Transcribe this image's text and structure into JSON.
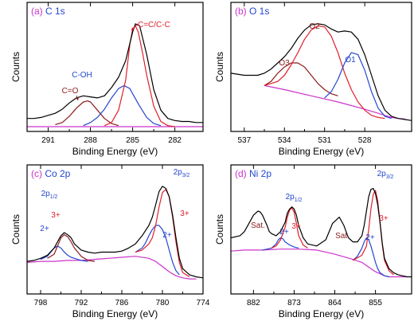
{
  "chart_data": [
    {
      "type": "line",
      "panel_letter": "(a)",
      "panel_title": "C 1s",
      "xlabel": "Binding Energy (eV)",
      "ylabel": "Counts",
      "xlim": [
        292.5,
        280.0
      ],
      "x_ticks": [
        291,
        288,
        285,
        282
      ],
      "x_tick_labels": [
        "291",
        "288",
        "285",
        "282"
      ],
      "ylim": [
        0,
        1.1
      ],
      "series": [
        {
          "role": "raw",
          "color": "#000000",
          "x": [
            292.5,
            292,
            291.5,
            291,
            290.5,
            290,
            289.5,
            289,
            288.5,
            288,
            287.5,
            287,
            286.5,
            286,
            285.5,
            285,
            284.8,
            284.5,
            284,
            283.5,
            283,
            282.5,
            282,
            281.5,
            281,
            280.5,
            280
          ],
          "y": [
            0.08,
            0.08,
            0.09,
            0.11,
            0.13,
            0.17,
            0.23,
            0.28,
            0.3,
            0.29,
            0.28,
            0.3,
            0.38,
            0.48,
            0.64,
            0.92,
            1.0,
            0.98,
            0.7,
            0.36,
            0.16,
            0.08,
            0.06,
            0.05,
            0.05,
            0.04,
            0.04
          ]
        },
        {
          "role": "component",
          "color": "#8b1a1a",
          "x": [
            290.5,
            290,
            289.5,
            289,
            288.5,
            288.2,
            288,
            287.5,
            287,
            286.5,
            286
          ],
          "y": [
            0.02,
            0.04,
            0.1,
            0.18,
            0.24,
            0.25,
            0.24,
            0.16,
            0.08,
            0.03,
            0.01
          ]
        },
        {
          "role": "component",
          "color": "#2346d1",
          "x": [
            288.5,
            288,
            287.5,
            287,
            286.5,
            286,
            285.6,
            285.2,
            285,
            284.5,
            284,
            283.5,
            283
          ],
          "y": [
            0.01,
            0.04,
            0.09,
            0.17,
            0.28,
            0.37,
            0.4,
            0.37,
            0.32,
            0.2,
            0.09,
            0.03,
            0.01
          ]
        },
        {
          "role": "component",
          "color": "#e0202a",
          "x": [
            287,
            286.5,
            286,
            285.5,
            285.2,
            285,
            284.8,
            284.6,
            284.3,
            284,
            283.5,
            283,
            282.5,
            282
          ],
          "y": [
            0.01,
            0.04,
            0.16,
            0.45,
            0.8,
            0.95,
            0.98,
            0.92,
            0.72,
            0.5,
            0.2,
            0.05,
            0.01,
            0.0
          ]
        },
        {
          "role": "background",
          "color": "#cc33cc",
          "x": [
            292.5,
            280
          ],
          "y": [
            0.0,
            0.0
          ]
        }
      ],
      "annotations": [
        {
          "text": "C=O",
          "color": "#8b1a1a"
        },
        {
          "text": "C-OH",
          "color": "#2346d1"
        },
        {
          "text": "C=C/C-C",
          "color": "#e0202a"
        }
      ]
    },
    {
      "type": "line",
      "panel_letter": "(b)",
      "panel_title": "O 1s",
      "xlabel": "Binding Energy (eV)",
      "ylabel": "Counts",
      "xlim": [
        538.0,
        524.5
      ],
      "x_ticks": [
        537,
        534,
        531,
        528
      ],
      "x_tick_labels": [
        "537",
        "534",
        "531",
        "528"
      ],
      "ylim": [
        0,
        1.1
      ],
      "series": [
        {
          "role": "raw",
          "color": "#000000",
          "x": [
            538,
            537,
            536,
            535.5,
            535,
            534.5,
            534,
            533.5,
            533,
            532.5,
            532,
            531.5,
            531,
            530.5,
            530,
            529.5,
            529,
            528.5,
            528,
            527.5,
            527,
            526.5,
            526,
            525.5,
            525,
            524.5
          ],
          "y": [
            0.52,
            0.5,
            0.5,
            0.52,
            0.56,
            0.62,
            0.68,
            0.76,
            0.86,
            0.94,
            0.99,
            1.0,
            0.99,
            0.95,
            0.92,
            0.93,
            0.92,
            0.85,
            0.7,
            0.5,
            0.3,
            0.16,
            0.1,
            0.08,
            0.07,
            0.06
          ]
        },
        {
          "role": "component",
          "color": "#8b1a1a",
          "x": [
            535.5,
            535,
            534.5,
            534,
            533.5,
            533,
            532.5,
            532,
            531.5,
            531,
            530.5,
            530
          ],
          "y": [
            0.4,
            0.44,
            0.52,
            0.58,
            0.62,
            0.62,
            0.58,
            0.5,
            0.42,
            0.36,
            0.32,
            0.3
          ]
        },
        {
          "role": "component",
          "color": "#e0202a",
          "x": [
            535.5,
            534.5,
            534,
            533.5,
            533,
            532.5,
            532,
            531.5,
            531,
            530.5,
            530,
            529.5,
            529,
            528.5,
            528,
            527.5,
            527,
            526.5
          ],
          "y": [
            0.4,
            0.44,
            0.5,
            0.6,
            0.72,
            0.85,
            0.94,
            0.98,
            0.97,
            0.88,
            0.72,
            0.52,
            0.36,
            0.24,
            0.16,
            0.11,
            0.09,
            0.08
          ]
        },
        {
          "role": "component",
          "color": "#2346d1",
          "x": [
            531,
            530.5,
            530,
            529.5,
            529,
            528.5,
            528,
            527.5,
            527,
            526.5,
            526
          ],
          "y": [
            0.28,
            0.34,
            0.46,
            0.62,
            0.72,
            0.7,
            0.55,
            0.34,
            0.18,
            0.1,
            0.08
          ]
        },
        {
          "role": "background",
          "color": "#cc33cc",
          "x": [
            535.5,
            534,
            532,
            530,
            528,
            527,
            526,
            525.5,
            525
          ],
          "y": [
            0.4,
            0.36,
            0.3,
            0.24,
            0.17,
            0.13,
            0.09,
            0.08,
            0.075
          ]
        }
      ],
      "annotations": [
        {
          "text": "O3",
          "color": "#8b1a1a"
        },
        {
          "text": "O2",
          "color": "#8b1a1a"
        },
        {
          "text": "O1",
          "color": "#2346d1"
        }
      ]
    },
    {
      "type": "line",
      "panel_letter": "(c)",
      "panel_title": "Co 2p",
      "xlabel": "Binding Energy (eV)",
      "ylabel": "Counts",
      "xlim": [
        800.0,
        774.0
      ],
      "x_ticks": [
        798,
        792,
        786,
        780,
        774
      ],
      "x_tick_labels": [
        "798",
        "792",
        "786",
        "780",
        "774"
      ],
      "ylim": [
        0,
        1.1
      ],
      "series": [
        {
          "role": "raw",
          "color": "#000000",
          "x": [
            800,
            799,
            798,
            797,
            796,
            795.5,
            795,
            794.5,
            794,
            793.5,
            793,
            792,
            791,
            790,
            789,
            788,
            787,
            786,
            785,
            784,
            783,
            782,
            781.5,
            781,
            780.5,
            780,
            779.5,
            779,
            778.5,
            778,
            777.5,
            777,
            776,
            775,
            774
          ],
          "y": [
            0.27,
            0.28,
            0.3,
            0.33,
            0.4,
            0.46,
            0.52,
            0.55,
            0.53,
            0.5,
            0.44,
            0.38,
            0.36,
            0.35,
            0.36,
            0.36,
            0.36,
            0.37,
            0.4,
            0.44,
            0.52,
            0.62,
            0.7,
            0.82,
            0.95,
            1.0,
            0.98,
            0.9,
            0.72,
            0.5,
            0.3,
            0.2,
            0.14,
            0.12,
            0.11
          ]
        },
        {
          "role": "component",
          "color": "#2346d1",
          "x": [
            798,
            797,
            796.5,
            796,
            795.5,
            795,
            794.5,
            794,
            793.5,
            793,
            792,
            791
          ],
          "y": [
            0.29,
            0.32,
            0.36,
            0.4,
            0.42,
            0.4,
            0.36,
            0.33,
            0.31,
            0.3,
            0.28,
            0.27
          ]
        },
        {
          "role": "component",
          "color": "#8b1a1a",
          "x": [
            797,
            796,
            795.5,
            795,
            794.5,
            794,
            793.5,
            793,
            792,
            791,
            790
          ],
          "y": [
            0.3,
            0.34,
            0.42,
            0.5,
            0.53,
            0.51,
            0.46,
            0.4,
            0.32,
            0.28,
            0.27
          ]
        },
        {
          "role": "component",
          "color": "#2346d1",
          "x": [
            784,
            783,
            782.5,
            782,
            781.5,
            781,
            780.5,
            780,
            779.5,
            779,
            778.5,
            778,
            777.5
          ],
          "y": [
            0.36,
            0.4,
            0.45,
            0.52,
            0.58,
            0.62,
            0.62,
            0.58,
            0.5,
            0.38,
            0.26,
            0.18,
            0.14
          ]
        },
        {
          "role": "component",
          "color": "#e0202a",
          "x": [
            784,
            783,
            782,
            781.5,
            781,
            780.5,
            780,
            779.5,
            779,
            778.5,
            778,
            777.5,
            777,
            776
          ],
          "y": [
            0.36,
            0.38,
            0.44,
            0.5,
            0.62,
            0.8,
            0.94,
            0.97,
            0.9,
            0.7,
            0.46,
            0.26,
            0.16,
            0.12
          ]
        },
        {
          "role": "background",
          "color": "#cc33cc",
          "x": [
            800,
            798,
            796,
            794,
            792,
            790,
            788,
            786,
            784,
            782,
            781,
            780,
            779,
            778,
            777,
            776,
            775
          ],
          "y": [
            0.26,
            0.27,
            0.27,
            0.28,
            0.28,
            0.29,
            0.3,
            0.31,
            0.32,
            0.3,
            0.27,
            0.22,
            0.17,
            0.13,
            0.11,
            0.1,
            0.1
          ]
        }
      ],
      "annotations": [
        {
          "text": "2p",
          "sub": "1/2",
          "color": "#2346d1"
        },
        {
          "text": "3+",
          "color": "#e0202a"
        },
        {
          "text": "2+",
          "color": "#2346d1"
        },
        {
          "text": "2p",
          "sub": "3/2",
          "color": "#2346d1"
        },
        {
          "text": "3+",
          "color": "#e0202a"
        },
        {
          "text": "2+",
          "color": "#2346d1"
        }
      ]
    },
    {
      "type": "line",
      "panel_letter": "(d)",
      "panel_title": "Ni 2p",
      "xlabel": "Binding Energy (eV)",
      "ylabel": "Counts",
      "xlim": [
        887.0,
        847.0
      ],
      "x_ticks": [
        882,
        873,
        864,
        855
      ],
      "x_tick_labels": [
        "882",
        "873",
        "864",
        "855"
      ],
      "ylim": [
        0,
        1.1
      ],
      "series": [
        {
          "role": "raw",
          "color": "#000000",
          "x": [
            887,
            885,
            884,
            883,
            882,
            881,
            880.5,
            880,
            879,
            878.5,
            878,
            877,
            876,
            875,
            874.5,
            874,
            873.5,
            873,
            872.5,
            872,
            871,
            870,
            868,
            866,
            864.5,
            863,
            862,
            861.5,
            861,
            860,
            859,
            858,
            857.5,
            857,
            856.5,
            856,
            855.5,
            855,
            854.5,
            854,
            853.5,
            853,
            852,
            851,
            850,
            849,
            848,
            847
          ],
          "y": [
            0.5,
            0.52,
            0.56,
            0.64,
            0.72,
            0.76,
            0.75,
            0.72,
            0.62,
            0.56,
            0.54,
            0.52,
            0.56,
            0.65,
            0.74,
            0.78,
            0.8,
            0.78,
            0.72,
            0.62,
            0.5,
            0.44,
            0.42,
            0.48,
            0.64,
            0.7,
            0.62,
            0.56,
            0.5,
            0.46,
            0.46,
            0.52,
            0.62,
            0.76,
            0.9,
            0.97,
            0.98,
            0.93,
            0.82,
            0.65,
            0.45,
            0.3,
            0.2,
            0.16,
            0.14,
            0.13,
            0.12,
            0.12
          ]
        },
        {
          "role": "component",
          "color": "#2346d1",
          "x": [
            880,
            878,
            877,
            876.5,
            876,
            875.5,
            875,
            874,
            873,
            872
          ],
          "y": [
            0.38,
            0.4,
            0.44,
            0.48,
            0.5,
            0.49,
            0.46,
            0.43,
            0.41,
            0.4
          ]
        },
        {
          "role": "component",
          "color": "#e0202a",
          "x": [
            878,
            877,
            876,
            875,
            874.5,
            874,
            873.5,
            873,
            872.5,
            872,
            871,
            870
          ],
          "y": [
            0.4,
            0.42,
            0.48,
            0.6,
            0.7,
            0.77,
            0.79,
            0.75,
            0.64,
            0.52,
            0.43,
            0.4
          ]
        },
        {
          "role": "component",
          "color": "#2346d1",
          "x": [
            860,
            859,
            858,
            857.5,
            857,
            856.5,
            856,
            855.5,
            855,
            854.5,
            854,
            853,
            852
          ],
          "y": [
            0.28,
            0.32,
            0.4,
            0.46,
            0.5,
            0.48,
            0.42,
            0.34,
            0.26,
            0.2,
            0.16,
            0.13,
            0.12
          ]
        },
        {
          "role": "component",
          "color": "#e0202a",
          "x": [
            860,
            858,
            857,
            856.5,
            856,
            855.5,
            855,
            854.5,
            854,
            853.5,
            853,
            852,
            851
          ],
          "y": [
            0.28,
            0.33,
            0.42,
            0.58,
            0.78,
            0.92,
            0.96,
            0.86,
            0.65,
            0.44,
            0.28,
            0.18,
            0.14
          ]
        },
        {
          "role": "background",
          "color": "#cc33cc",
          "x": [
            887,
            884,
            880,
            876,
            872,
            868,
            864,
            860,
            858,
            856,
            855,
            854,
            853,
            852,
            850,
            848
          ],
          "y": [
            0.37,
            0.38,
            0.38,
            0.39,
            0.39,
            0.38,
            0.34,
            0.29,
            0.26,
            0.2,
            0.17,
            0.15,
            0.13,
            0.12,
            0.12,
            0.12
          ]
        }
      ],
      "annotations": [
        {
          "text": "Sat.",
          "color": "#8b1a1a"
        },
        {
          "text": "2+",
          "color": "#2346d1"
        },
        {
          "text": "3+",
          "color": "#e0202a"
        },
        {
          "text": "2p",
          "sub": "1/2",
          "color": "#2346d1"
        },
        {
          "text": "Sat.",
          "color": "#8b1a1a"
        },
        {
          "text": "2+",
          "color": "#2346d1"
        },
        {
          "text": "3+",
          "color": "#e0202a"
        },
        {
          "text": "2p",
          "sub": "3/2",
          "color": "#2346d1"
        }
      ]
    }
  ],
  "colors": {
    "raw": "#000000",
    "panel_letter": "#cc33cc",
    "panel_title": "#2346d1",
    "background_fit": "#cc33cc"
  }
}
